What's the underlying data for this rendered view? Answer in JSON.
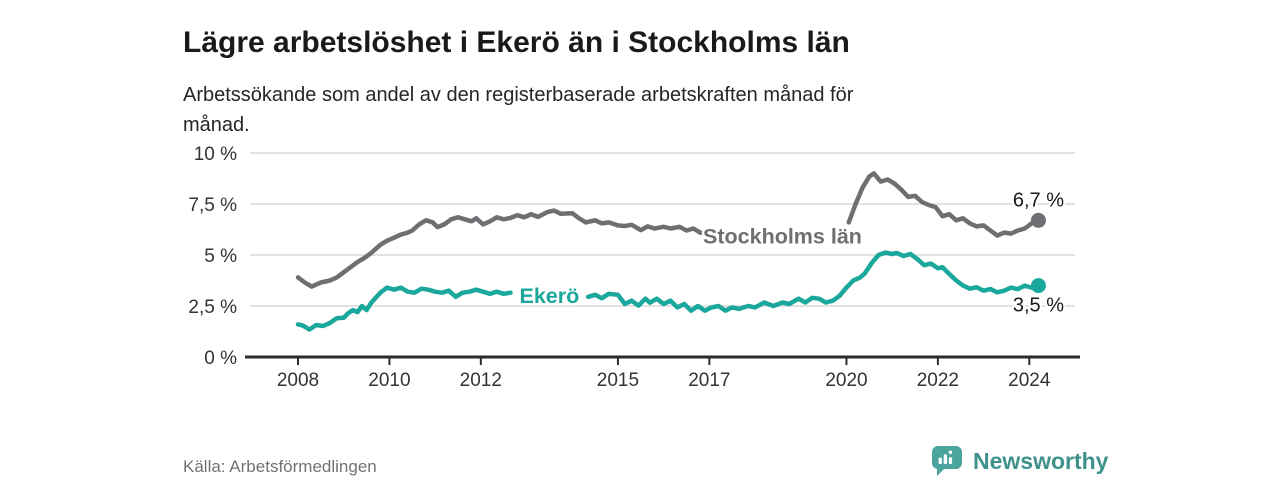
{
  "header": {
    "title": "Lägre arbetslöshet i Ekerö än i Stockholms län",
    "subtitle_line1": "Arbetssökande som andel av den registerbaserade arbetskraften månad för",
    "subtitle_line2": "månad."
  },
  "footer": {
    "source": "Källa: Arbetsförmedlingen",
    "brand": "Newsworthy"
  },
  "theme": {
    "title_color": "#1a1a1a",
    "subtitle_color": "#262626",
    "axis_text": "#333333",
    "grid_color": "#d9d9d9",
    "axis_color": "#2b2b2b",
    "source_color": "#737373",
    "brand_teal": "#4ba59c",
    "brand_text": "#3f918b",
    "accent_teal": "#1aa79c",
    "series_gray": "#6e6f72"
  },
  "chart_data": {
    "type": "line",
    "title": "Lägre arbetslöshet i Ekerö än i Stockholms län",
    "subtitle": "Arbetssökande som andel av den registerbaserade arbetskraften månad för månad.",
    "xlabel": "",
    "ylabel": "",
    "grid": true,
    "legend_position": "inline-labels",
    "xlim": [
      2006.95,
      2025.0
    ],
    "ylim": [
      0,
      10
    ],
    "yticks": [
      {
        "value": 0,
        "label": "0 %"
      },
      {
        "value": 2.5,
        "label": "2,5 %"
      },
      {
        "value": 5,
        "label": "5 %"
      },
      {
        "value": 7.5,
        "label": "7,5 %"
      },
      {
        "value": 10,
        "label": "10 %"
      }
    ],
    "xticks": [
      {
        "value": 2008,
        "label": "2008"
      },
      {
        "value": 2010,
        "label": "2010"
      },
      {
        "value": 2012,
        "label": "2012"
      },
      {
        "value": 2015,
        "label": "2015"
      },
      {
        "value": 2017,
        "label": "2017"
      },
      {
        "value": 2020,
        "label": "2020"
      },
      {
        "value": 2022,
        "label": "2022"
      },
      {
        "value": 2024,
        "label": "2024"
      }
    ],
    "series": [
      {
        "name": "Stockholms län",
        "color": "#6e6f72",
        "end_label": "6,7 %",
        "end_value": 6.7,
        "end_label_side": "above",
        "label_pos": {
          "x": 2018.6,
          "y": 5.95
        },
        "segments": [
          [
            [
              2008.0,
              3.9
            ],
            [
              2008.15,
              3.65
            ],
            [
              2008.3,
              3.45
            ],
            [
              2008.5,
              3.65
            ],
            [
              2008.7,
              3.75
            ],
            [
              2008.85,
              3.9
            ],
            [
              2009.0,
              4.15
            ],
            [
              2009.15,
              4.4
            ],
            [
              2009.3,
              4.65
            ],
            [
              2009.45,
              4.85
            ],
            [
              2009.6,
              5.1
            ],
            [
              2009.8,
              5.5
            ],
            [
              2009.95,
              5.7
            ],
            [
              2010.1,
              5.85
            ],
            [
              2010.25,
              6.0
            ],
            [
              2010.4,
              6.1
            ],
            [
              2010.5,
              6.2
            ],
            [
              2010.65,
              6.5
            ],
            [
              2010.8,
              6.7
            ],
            [
              2010.95,
              6.6
            ],
            [
              2011.05,
              6.37
            ],
            [
              2011.2,
              6.5
            ],
            [
              2011.35,
              6.75
            ],
            [
              2011.5,
              6.85
            ],
            [
              2011.65,
              6.75
            ],
            [
              2011.8,
              6.65
            ],
            [
              2011.9,
              6.8
            ],
            [
              2012.05,
              6.5
            ],
            [
              2012.2,
              6.65
            ],
            [
              2012.35,
              6.85
            ],
            [
              2012.5,
              6.75
            ],
            [
              2012.65,
              6.82
            ],
            [
              2012.8,
              6.95
            ],
            [
              2012.95,
              6.85
            ],
            [
              2013.1,
              7.0
            ],
            [
              2013.25,
              6.87
            ],
            [
              2013.45,
              7.1
            ],
            [
              2013.6,
              7.18
            ],
            [
              2013.75,
              7.02
            ],
            [
              2014.0,
              7.05
            ],
            [
              2014.15,
              6.8
            ],
            [
              2014.3,
              6.6
            ],
            [
              2014.5,
              6.7
            ],
            [
              2014.65,
              6.55
            ],
            [
              2014.8,
              6.6
            ],
            [
              2015.0,
              6.45
            ],
            [
              2015.15,
              6.42
            ],
            [
              2015.3,
              6.48
            ],
            [
              2015.5,
              6.22
            ],
            [
              2015.65,
              6.4
            ],
            [
              2015.8,
              6.3
            ],
            [
              2016.0,
              6.38
            ],
            [
              2016.15,
              6.3
            ],
            [
              2016.35,
              6.38
            ],
            [
              2016.5,
              6.2
            ],
            [
              2016.65,
              6.3
            ],
            [
              2016.8,
              6.1
            ],
            [
              2017.0,
              6.07
            ],
            [
              2017.2,
              6.12
            ],
            [
              2017.4,
              6.05
            ]
          ],
          [
            [
              2020.05,
              6.6
            ],
            [
              2020.2,
              7.5
            ],
            [
              2020.35,
              8.3
            ],
            [
              2020.5,
              8.85
            ],
            [
              2020.6,
              9.0
            ],
            [
              2020.75,
              8.6
            ],
            [
              2020.9,
              8.7
            ],
            [
              2021.05,
              8.5
            ],
            [
              2021.2,
              8.2
            ],
            [
              2021.35,
              7.85
            ],
            [
              2021.5,
              7.9
            ],
            [
              2021.65,
              7.6
            ],
            [
              2021.8,
              7.45
            ],
            [
              2021.95,
              7.35
            ],
            [
              2022.1,
              6.9
            ],
            [
              2022.25,
              7.0
            ],
            [
              2022.4,
              6.7
            ],
            [
              2022.55,
              6.8
            ],
            [
              2022.7,
              6.55
            ],
            [
              2022.85,
              6.4
            ],
            [
              2023.0,
              6.45
            ],
            [
              2023.15,
              6.2
            ],
            [
              2023.3,
              5.95
            ],
            [
              2023.45,
              6.1
            ],
            [
              2023.6,
              6.05
            ],
            [
              2023.75,
              6.2
            ],
            [
              2023.9,
              6.3
            ],
            [
              2024.05,
              6.55
            ],
            [
              2024.2,
              6.7
            ]
          ]
        ]
      },
      {
        "name": "Ekerö",
        "color": "#1aa79c",
        "end_label": "3,5 %",
        "end_value": 3.5,
        "end_label_side": "below",
        "label_pos": {
          "x": 2013.5,
          "y": 3.05
        },
        "segments": [
          [
            [
              2008.0,
              1.6
            ],
            [
              2008.1,
              1.55
            ],
            [
              2008.25,
              1.35
            ],
            [
              2008.4,
              1.57
            ],
            [
              2008.55,
              1.52
            ],
            [
              2008.7,
              1.67
            ],
            [
              2008.85,
              1.9
            ],
            [
              2009.0,
              1.92
            ],
            [
              2009.1,
              2.15
            ],
            [
              2009.2,
              2.3
            ],
            [
              2009.3,
              2.2
            ],
            [
              2009.4,
              2.5
            ],
            [
              2009.5,
              2.3
            ],
            [
              2009.6,
              2.65
            ],
            [
              2009.7,
              2.9
            ],
            [
              2009.8,
              3.15
            ],
            [
              2009.95,
              3.4
            ],
            [
              2010.1,
              3.3
            ],
            [
              2010.25,
              3.4
            ],
            [
              2010.4,
              3.2
            ],
            [
              2010.55,
              3.15
            ],
            [
              2010.7,
              3.35
            ],
            [
              2010.85,
              3.3
            ],
            [
              2011.0,
              3.2
            ],
            [
              2011.15,
              3.15
            ],
            [
              2011.3,
              3.25
            ],
            [
              2011.45,
              2.95
            ],
            [
              2011.6,
              3.15
            ],
            [
              2011.75,
              3.2
            ],
            [
              2011.9,
              3.3
            ],
            [
              2012.05,
              3.2
            ],
            [
              2012.2,
              3.1
            ],
            [
              2012.35,
              3.2
            ],
            [
              2012.5,
              3.1
            ],
            [
              2012.65,
              3.15
            ]
          ],
          [
            [
              2014.35,
              2.95
            ],
            [
              2014.5,
              3.05
            ],
            [
              2014.65,
              2.88
            ],
            [
              2014.8,
              3.1
            ],
            [
              2015.0,
              3.05
            ],
            [
              2015.15,
              2.6
            ],
            [
              2015.3,
              2.76
            ],
            [
              2015.45,
              2.52
            ],
            [
              2015.6,
              2.86
            ],
            [
              2015.7,
              2.66
            ],
            [
              2015.85,
              2.86
            ],
            [
              2016.0,
              2.6
            ],
            [
              2016.15,
              2.76
            ],
            [
              2016.3,
              2.43
            ],
            [
              2016.45,
              2.6
            ],
            [
              2016.6,
              2.27
            ],
            [
              2016.75,
              2.5
            ],
            [
              2016.9,
              2.27
            ],
            [
              2017.05,
              2.43
            ],
            [
              2017.2,
              2.5
            ],
            [
              2017.35,
              2.27
            ],
            [
              2017.5,
              2.43
            ],
            [
              2017.65,
              2.36
            ],
            [
              2017.85,
              2.5
            ],
            [
              2018.0,
              2.43
            ],
            [
              2018.2,
              2.67
            ],
            [
              2018.4,
              2.5
            ],
            [
              2018.6,
              2.67
            ],
            [
              2018.75,
              2.6
            ],
            [
              2018.95,
              2.86
            ],
            [
              2019.1,
              2.67
            ],
            [
              2019.25,
              2.9
            ],
            [
              2019.4,
              2.86
            ],
            [
              2019.55,
              2.67
            ],
            [
              2019.7,
              2.76
            ],
            [
              2019.85,
              3.0
            ],
            [
              2020.0,
              3.4
            ],
            [
              2020.15,
              3.75
            ],
            [
              2020.3,
              3.9
            ],
            [
              2020.4,
              4.1
            ],
            [
              2020.55,
              4.6
            ],
            [
              2020.7,
              5.0
            ],
            [
              2020.85,
              5.12
            ],
            [
              2021.0,
              5.05
            ],
            [
              2021.1,
              5.1
            ],
            [
              2021.25,
              4.95
            ],
            [
              2021.4,
              5.05
            ],
            [
              2021.55,
              4.8
            ],
            [
              2021.7,
              4.5
            ],
            [
              2021.85,
              4.58
            ],
            [
              2022.0,
              4.35
            ],
            [
              2022.1,
              4.4
            ],
            [
              2022.25,
              4.07
            ],
            [
              2022.4,
              3.75
            ],
            [
              2022.55,
              3.5
            ],
            [
              2022.7,
              3.35
            ],
            [
              2022.85,
              3.42
            ],
            [
              2023.0,
              3.25
            ],
            [
              2023.15,
              3.33
            ],
            [
              2023.3,
              3.17
            ],
            [
              2023.45,
              3.25
            ],
            [
              2023.6,
              3.4
            ],
            [
              2023.75,
              3.33
            ],
            [
              2023.9,
              3.5
            ],
            [
              2024.05,
              3.4
            ],
            [
              2024.2,
              3.5
            ]
          ]
        ]
      }
    ]
  }
}
